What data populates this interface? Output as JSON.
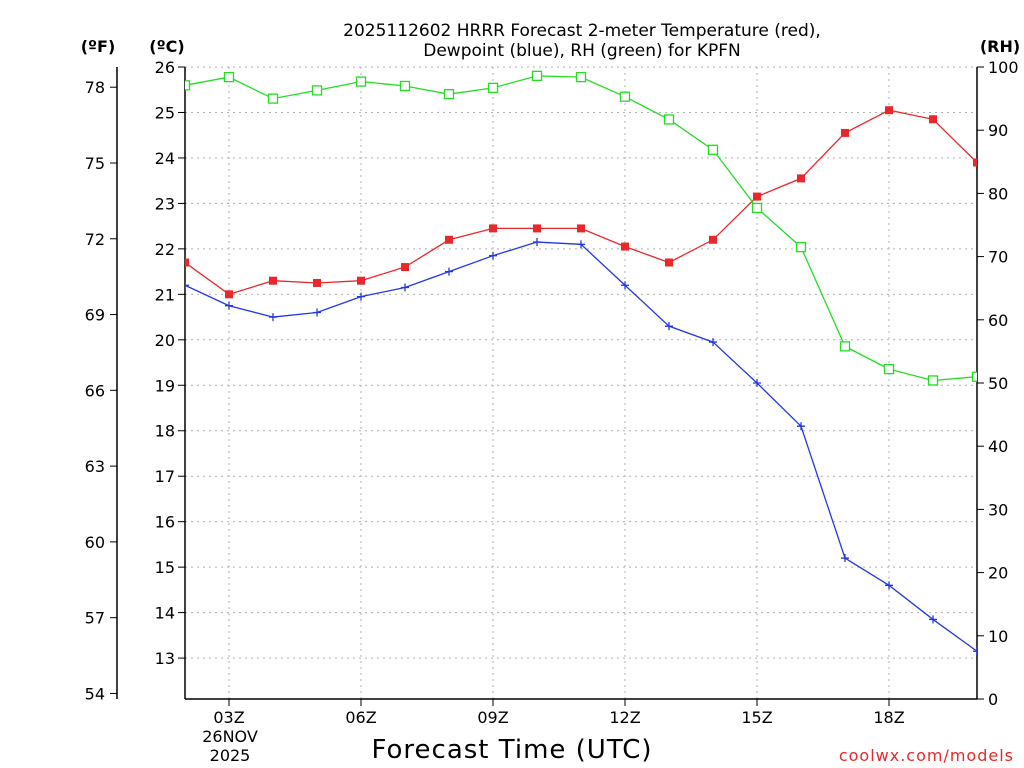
{
  "chart_data": {
    "type": "line",
    "title": [
      "2025112602 HRRR Forecast 2-meter Temperature (red),",
      "Dewpoint (blue), RH (green) for KPFN"
    ],
    "xlabel": "Forecast Time (UTC)",
    "date_label": [
      "26NOV",
      "2025"
    ],
    "credit": "coolwx.com/models",
    "grid": true,
    "x": [
      2,
      3,
      4,
      5,
      6,
      7,
      8,
      9,
      10,
      11,
      12,
      13,
      14,
      15,
      16,
      17,
      18,
      19,
      20
    ],
    "x_ticks": [
      3,
      6,
      9,
      12,
      15,
      18
    ],
    "x_tick_labels": [
      "03Z",
      "06Z",
      "09Z",
      "12Z",
      "15Z",
      "18Z"
    ],
    "xlim": [
      2,
      20
    ],
    "left_axis_celsius": {
      "label": "(ºC)",
      "ylim": [
        12.1,
        26
      ],
      "ticks": [
        13,
        14,
        15,
        16,
        17,
        18,
        19,
        20,
        21,
        22,
        23,
        24,
        25,
        26
      ]
    },
    "left_axis_fahrenheit": {
      "label": "(ºF)",
      "ticks": [
        54,
        57,
        60,
        63,
        66,
        69,
        72,
        75,
        78
      ]
    },
    "right_axis_rh": {
      "label": "(RH)",
      "ylim": [
        0,
        100
      ],
      "ticks": [
        0,
        10,
        20,
        30,
        40,
        50,
        60,
        70,
        80,
        90,
        100
      ]
    },
    "series": [
      {
        "name": "2-meter Temperature",
        "axis": "celsius",
        "color": "#e8282a",
        "marker": "filled-square",
        "values": [
          21.7,
          21.0,
          21.3,
          21.25,
          21.3,
          21.6,
          22.2,
          22.45,
          22.45,
          22.45,
          22.05,
          21.7,
          22.2,
          23.15,
          23.55,
          24.55,
          25.05,
          24.85,
          23.9
        ]
      },
      {
        "name": "Dewpoint",
        "axis": "celsius",
        "color": "#2236e8",
        "marker": "plus",
        "values": [
          21.2,
          20.75,
          20.5,
          20.6,
          20.95,
          21.15,
          21.5,
          21.85,
          22.15,
          22.1,
          21.2,
          20.3,
          19.95,
          19.05,
          18.1,
          15.2,
          14.6,
          13.85,
          13.15
        ]
      },
      {
        "name": "RH",
        "axis": "rh",
        "color": "#22dd22",
        "marker": "open-square",
        "values": [
          97.1,
          98.4,
          95.0,
          96.3,
          97.7,
          97.0,
          95.7,
          96.7,
          98.6,
          98.4,
          95.3,
          91.7,
          86.9,
          77.7,
          71.5,
          55.8,
          52.2,
          50.4,
          51.0
        ]
      }
    ]
  }
}
